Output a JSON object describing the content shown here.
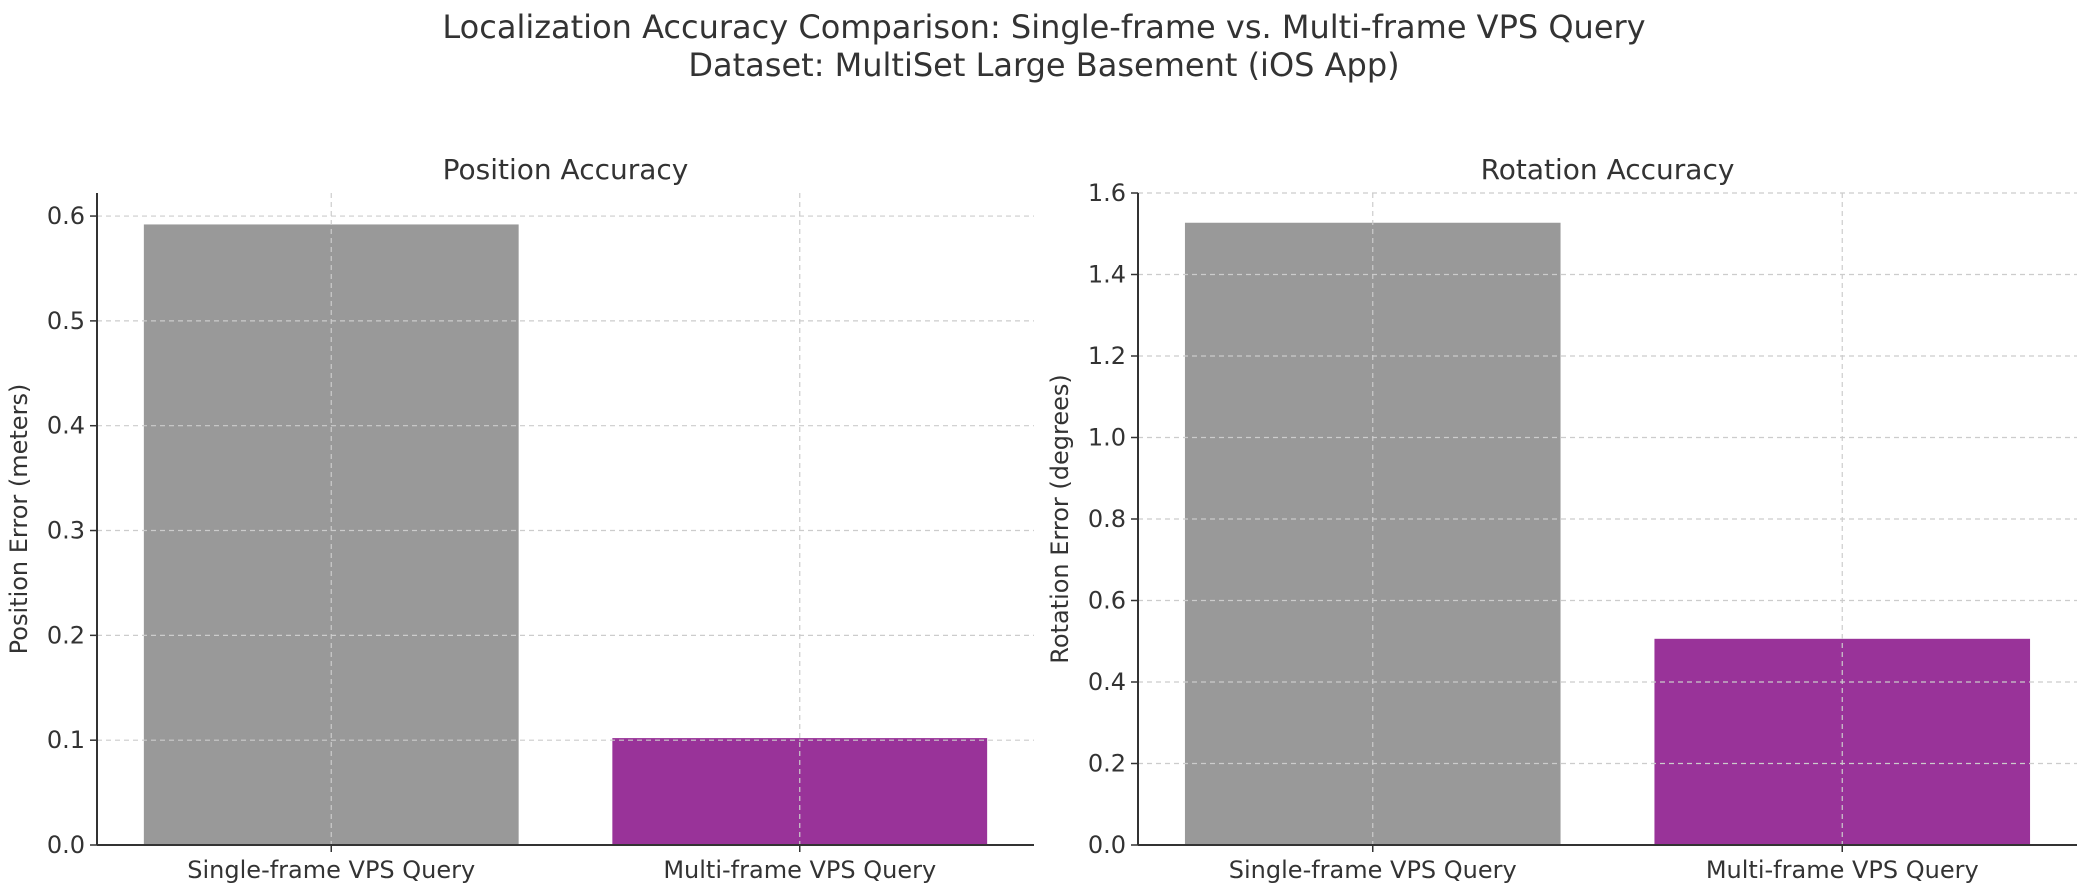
{
  "figure": {
    "title_line1": "Localization Accuracy Comparison: Single-frame vs. Multi-frame VPS Query",
    "title_line2": "Dataset: MultiSet Large Basement (iOS App)"
  },
  "chart_data": [
    {
      "type": "bar",
      "title": "Position Accuracy",
      "xlabel": "",
      "ylabel": "Position Error (meters)",
      "categories": [
        "Single-frame VPS Query",
        "Multi-frame VPS Query"
      ],
      "values": [
        0.592,
        0.102
      ],
      "colors": [
        "#999999",
        "#993399"
      ],
      "ylim": [
        0,
        0.622
      ],
      "yticks": [
        0.0,
        0.1,
        0.2,
        0.3,
        0.4,
        0.5,
        0.6
      ],
      "ytick_labels": [
        "0.0",
        "0.1",
        "0.2",
        "0.3",
        "0.4",
        "0.5",
        "0.6"
      ],
      "grid": true
    },
    {
      "type": "bar",
      "title": "Rotation Accuracy",
      "xlabel": "",
      "ylabel": "Rotation Error (degrees)",
      "categories": [
        "Single-frame VPS Query",
        "Multi-frame VPS Query"
      ],
      "values": [
        1.527,
        0.506
      ],
      "colors": [
        "#999999",
        "#993399"
      ],
      "ylim": [
        0,
        1.6
      ],
      "yticks": [
        0.0,
        0.2,
        0.4,
        0.6,
        0.8,
        1.0,
        1.2,
        1.4,
        1.6
      ],
      "ytick_labels": [
        "0.0",
        "0.2",
        "0.4",
        "0.6",
        "0.8",
        "1.0",
        "1.2",
        "1.4",
        "1.6"
      ],
      "grid": true
    }
  ]
}
